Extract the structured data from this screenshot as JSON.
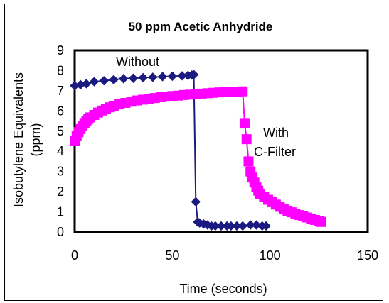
{
  "chart_data": {
    "type": "scatter",
    "title": "50 ppm Acetic Anhydride",
    "xlabel": "Time (seconds)",
    "ylabel_line1": "Isobutylene Equivalents",
    "ylabel_line2": "(ppm)",
    "xlim": [
      0,
      150
    ],
    "ylim": [
      0,
      9
    ],
    "xticks": [
      "0",
      "50",
      "100",
      "150"
    ],
    "yticks": [
      "0",
      "1",
      "2",
      "3",
      "4",
      "5",
      "6",
      "7",
      "8",
      "9"
    ],
    "grid": false,
    "legend": "none",
    "annotations": [
      {
        "text": "Without",
        "series": 0
      },
      {
        "text": "With",
        "series": 1
      },
      {
        "text": "C-Filter",
        "series": 1
      }
    ],
    "series": [
      {
        "color": "#1a1a80",
        "marker": "diamond",
        "points": [
          [
            0,
            7.25
          ],
          [
            3,
            7.3
          ],
          [
            6,
            7.35
          ],
          [
            10,
            7.45
          ],
          [
            15,
            7.5
          ],
          [
            20,
            7.55
          ],
          [
            25,
            7.6
          ],
          [
            30,
            7.62
          ],
          [
            35,
            7.65
          ],
          [
            40,
            7.67
          ],
          [
            45,
            7.7
          ],
          [
            50,
            7.72
          ],
          [
            55,
            7.74
          ],
          [
            58,
            7.76
          ],
          [
            60,
            7.78
          ],
          [
            61,
            7.8
          ],
          [
            62,
            1.5
          ],
          [
            63,
            0.5
          ],
          [
            64,
            0.45
          ],
          [
            66,
            0.4
          ],
          [
            68,
            0.35
          ],
          [
            70,
            0.3
          ],
          [
            72,
            0.3
          ],
          [
            75,
            0.3
          ],
          [
            78,
            0.3
          ],
          [
            80,
            0.3
          ],
          [
            83,
            0.3
          ],
          [
            86,
            0.3
          ],
          [
            90,
            0.35
          ],
          [
            93,
            0.35
          ],
          [
            96,
            0.3
          ],
          [
            98,
            0.3
          ]
        ]
      },
      {
        "color": "#ff00ff",
        "marker": "square",
        "points": [
          [
            0,
            4.5
          ],
          [
            1,
            4.75
          ],
          [
            2,
            4.95
          ],
          [
            3,
            5.1
          ],
          [
            4,
            5.25
          ],
          [
            5,
            5.4
          ],
          [
            6,
            5.5
          ],
          [
            7,
            5.6
          ],
          [
            8,
            5.68
          ],
          [
            10,
            5.8
          ],
          [
            12,
            5.92
          ],
          [
            14,
            6.02
          ],
          [
            16,
            6.1
          ],
          [
            18,
            6.18
          ],
          [
            20,
            6.25
          ],
          [
            23,
            6.33
          ],
          [
            26,
            6.4
          ],
          [
            29,
            6.46
          ],
          [
            32,
            6.52
          ],
          [
            35,
            6.56
          ],
          [
            38,
            6.6
          ],
          [
            41,
            6.64
          ],
          [
            44,
            6.68
          ],
          [
            47,
            6.71
          ],
          [
            50,
            6.74
          ],
          [
            53,
            6.76
          ],
          [
            56,
            6.79
          ],
          [
            59,
            6.81
          ],
          [
            62,
            6.84
          ],
          [
            65,
            6.86
          ],
          [
            68,
            6.88
          ],
          [
            71,
            6.9
          ],
          [
            74,
            6.92
          ],
          [
            77,
            6.93
          ],
          [
            80,
            6.95
          ],
          [
            83,
            6.96
          ],
          [
            86,
            6.97
          ],
          [
            87,
            5.4
          ],
          [
            88,
            4.6
          ],
          [
            89,
            3.5
          ],
          [
            90,
            3.0
          ],
          [
            91,
            2.7
          ],
          [
            92,
            2.45
          ],
          [
            93,
            2.25
          ],
          [
            94,
            2.05
          ],
          [
            95,
            1.9
          ],
          [
            97,
            1.75
          ],
          [
            99,
            1.6
          ],
          [
            101,
            1.48
          ],
          [
            103,
            1.36
          ],
          [
            105,
            1.25
          ],
          [
            107,
            1.15
          ],
          [
            109,
            1.05
          ],
          [
            111,
            0.98
          ],
          [
            113,
            0.9
          ],
          [
            115,
            0.84
          ],
          [
            117,
            0.78
          ],
          [
            119,
            0.72
          ],
          [
            121,
            0.66
          ],
          [
            123,
            0.6
          ],
          [
            125,
            0.55
          ],
          [
            126,
            0.5
          ]
        ]
      }
    ]
  }
}
